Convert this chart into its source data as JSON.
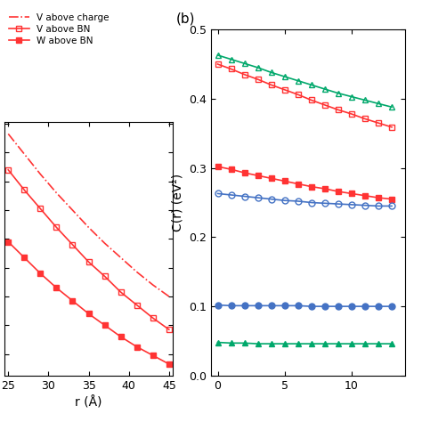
{
  "panel_b": {
    "ylabel": "C(r) (eV²)",
    "xlabel": "",
    "xlim": [
      -0.5,
      14
    ],
    "ylim": [
      0.0,
      0.5
    ],
    "yticks": [
      0.0,
      0.1,
      0.2,
      0.3,
      0.4,
      0.5
    ],
    "xticks": [
      0,
      5,
      10
    ],
    "label": "(b)",
    "series": [
      {
        "x": [
          0,
          1,
          2,
          3,
          4,
          5,
          6,
          7,
          8,
          9,
          10,
          11,
          12,
          13
        ],
        "y": [
          0.463,
          0.457,
          0.451,
          0.445,
          0.438,
          0.432,
          0.426,
          0.42,
          0.414,
          0.408,
          0.403,
          0.398,
          0.393,
          0.388
        ],
        "color": "#00a86b",
        "marker": "^",
        "markerfacecolor": "none",
        "markersize": 5,
        "linestyle": "-",
        "linewidth": 1.2
      },
      {
        "x": [
          0,
          1,
          2,
          3,
          4,
          5,
          6,
          7,
          8,
          9,
          10,
          11,
          12,
          13
        ],
        "y": [
          0.45,
          0.443,
          0.435,
          0.428,
          0.42,
          0.413,
          0.406,
          0.398,
          0.391,
          0.384,
          0.378,
          0.371,
          0.365,
          0.359
        ],
        "color": "#ff3333",
        "marker": "s",
        "markerfacecolor": "none",
        "markersize": 5,
        "linestyle": "-",
        "linewidth": 1.2
      },
      {
        "x": [
          0,
          1,
          2,
          3,
          4,
          5,
          6,
          7,
          8,
          9,
          10,
          11,
          12,
          13
        ],
        "y": [
          0.302,
          0.298,
          0.293,
          0.289,
          0.285,
          0.281,
          0.277,
          0.273,
          0.27,
          0.266,
          0.263,
          0.26,
          0.257,
          0.255
        ],
        "color": "#ff3333",
        "marker": "s",
        "markerfacecolor": "#ff3333",
        "markersize": 5,
        "linestyle": "-",
        "linewidth": 1.2
      },
      {
        "x": [
          0,
          1,
          2,
          3,
          4,
          5,
          6,
          7,
          8,
          9,
          10,
          11,
          12,
          13
        ],
        "y": [
          0.263,
          0.261,
          0.259,
          0.257,
          0.255,
          0.253,
          0.252,
          0.25,
          0.249,
          0.248,
          0.247,
          0.246,
          0.245,
          0.245
        ],
        "color": "#4472c4",
        "marker": "o",
        "markerfacecolor": "none",
        "markersize": 5,
        "linestyle": "-",
        "linewidth": 1.2
      },
      {
        "x": [
          0,
          1,
          2,
          3,
          4,
          5,
          6,
          7,
          8,
          9,
          10,
          11,
          12,
          13
        ],
        "y": [
          0.102,
          0.101,
          0.101,
          0.101,
          0.101,
          0.101,
          0.101,
          0.1,
          0.1,
          0.1,
          0.1,
          0.1,
          0.1,
          0.1
        ],
        "color": "#4472c4",
        "marker": "o",
        "markerfacecolor": "#4472c4",
        "markersize": 5,
        "linestyle": "-",
        "linewidth": 1.2
      },
      {
        "x": [
          0,
          1,
          2,
          3,
          4,
          5,
          6,
          7,
          8,
          9,
          10,
          11,
          12,
          13
        ],
        "y": [
          0.048,
          0.047,
          0.047,
          0.046,
          0.046,
          0.046,
          0.046,
          0.046,
          0.046,
          0.046,
          0.046,
          0.046,
          0.046,
          0.046
        ],
        "color": "#00a86b",
        "marker": "^",
        "markerfacecolor": "#00a86b",
        "markersize": 5,
        "linestyle": "-",
        "linewidth": 1.2
      }
    ]
  },
  "panel_a": {
    "ylabel": "",
    "xlabel": "r (Å)",
    "xlim": [
      24.5,
      45.5
    ],
    "xticks": [
      25,
      30,
      35,
      40,
      45
    ],
    "legend_items": [
      {
        "label": "V above charge",
        "color": "#ff3333",
        "linestyle": "-.",
        "marker": "none"
      },
      {
        "label": "V above BN",
        "color": "#ff3333",
        "linestyle": "-",
        "marker": "s",
        "markerfacecolor": "none"
      },
      {
        "label": "W above BN",
        "color": "#ff3333",
        "linestyle": "-",
        "marker": "s",
        "markerfacecolor": "#ff3333"
      }
    ],
    "series": [
      {
        "x": [
          25,
          27,
          29,
          31,
          33,
          35,
          37,
          39,
          41,
          43,
          45
        ],
        "y": [
          0.193,
          0.179,
          0.165,
          0.152,
          0.14,
          0.128,
          0.117,
          0.107,
          0.097,
          0.088,
          0.08
        ],
        "color": "#ff3333",
        "marker": "none",
        "linestyle": "-.",
        "linewidth": 1.2,
        "markerfacecolor": "none",
        "markersize": 5
      },
      {
        "x": [
          25,
          27,
          29,
          31,
          33,
          35,
          37,
          39,
          41,
          43,
          45
        ],
        "y": [
          0.168,
          0.154,
          0.141,
          0.128,
          0.116,
          0.104,
          0.094,
          0.083,
          0.074,
          0.065,
          0.057
        ],
        "color": "#ff3333",
        "marker": "s",
        "linestyle": "-",
        "linewidth": 1.2,
        "markerfacecolor": "none",
        "markersize": 5
      },
      {
        "x": [
          25,
          27,
          29,
          31,
          33,
          35,
          37,
          39,
          41,
          43,
          45
        ],
        "y": [
          0.118,
          0.107,
          0.096,
          0.086,
          0.077,
          0.068,
          0.06,
          0.052,
          0.045,
          0.039,
          0.033
        ],
        "color": "#ff3333",
        "marker": "s",
        "linestyle": "-",
        "linewidth": 1.2,
        "markerfacecolor": "#ff3333",
        "markersize": 5
      }
    ]
  },
  "fig_width": 4.74,
  "fig_height": 4.74,
  "dpi": 100
}
